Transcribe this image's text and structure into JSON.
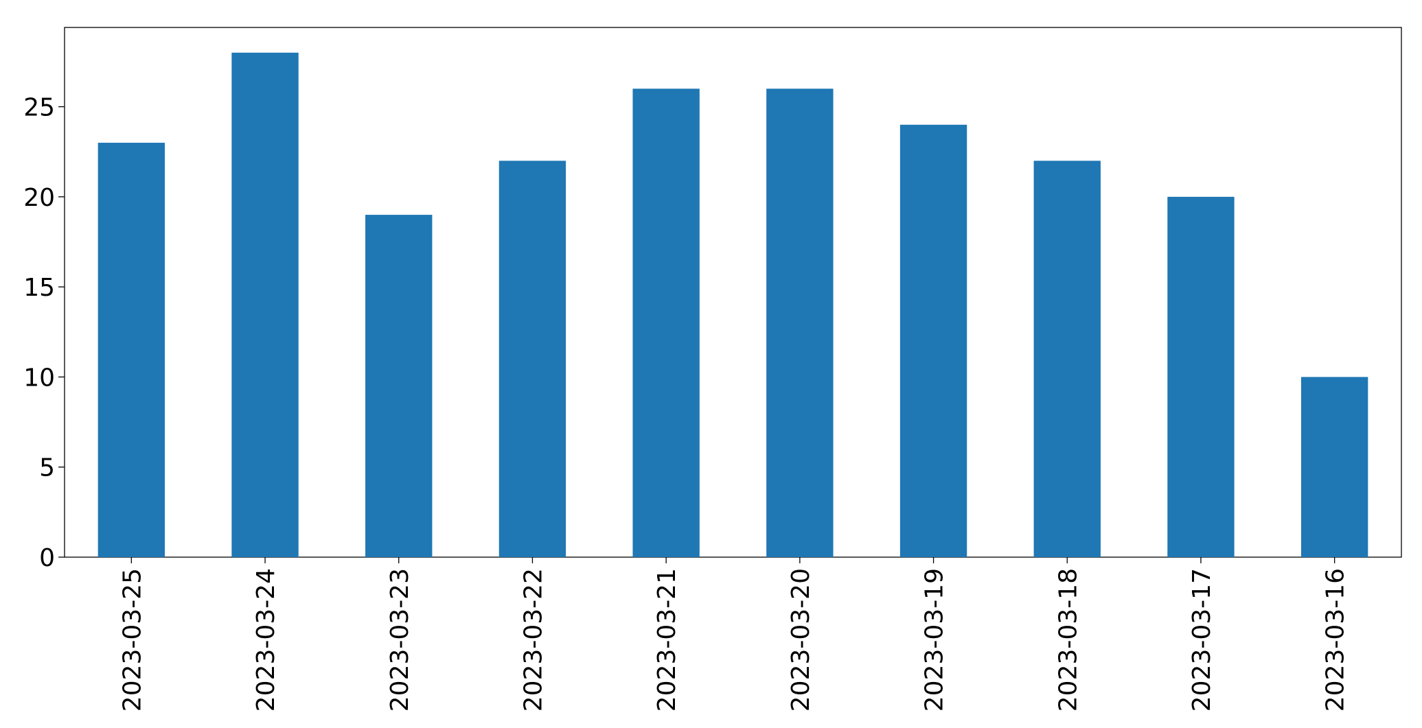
{
  "chart_data": {
    "type": "bar",
    "categories": [
      "2023-03-25",
      "2023-03-24",
      "2023-03-23",
      "2023-03-22",
      "2023-03-21",
      "2023-03-20",
      "2023-03-19",
      "2023-03-18",
      "2023-03-17",
      "2023-03-16"
    ],
    "values": [
      23,
      28,
      19,
      22,
      26,
      26,
      24,
      22,
      20,
      10
    ],
    "color": "#1f77b4",
    "ylim": [
      0,
      29.4
    ],
    "yticks": [
      0,
      5,
      10,
      15,
      20,
      25
    ],
    "grid": false
  }
}
